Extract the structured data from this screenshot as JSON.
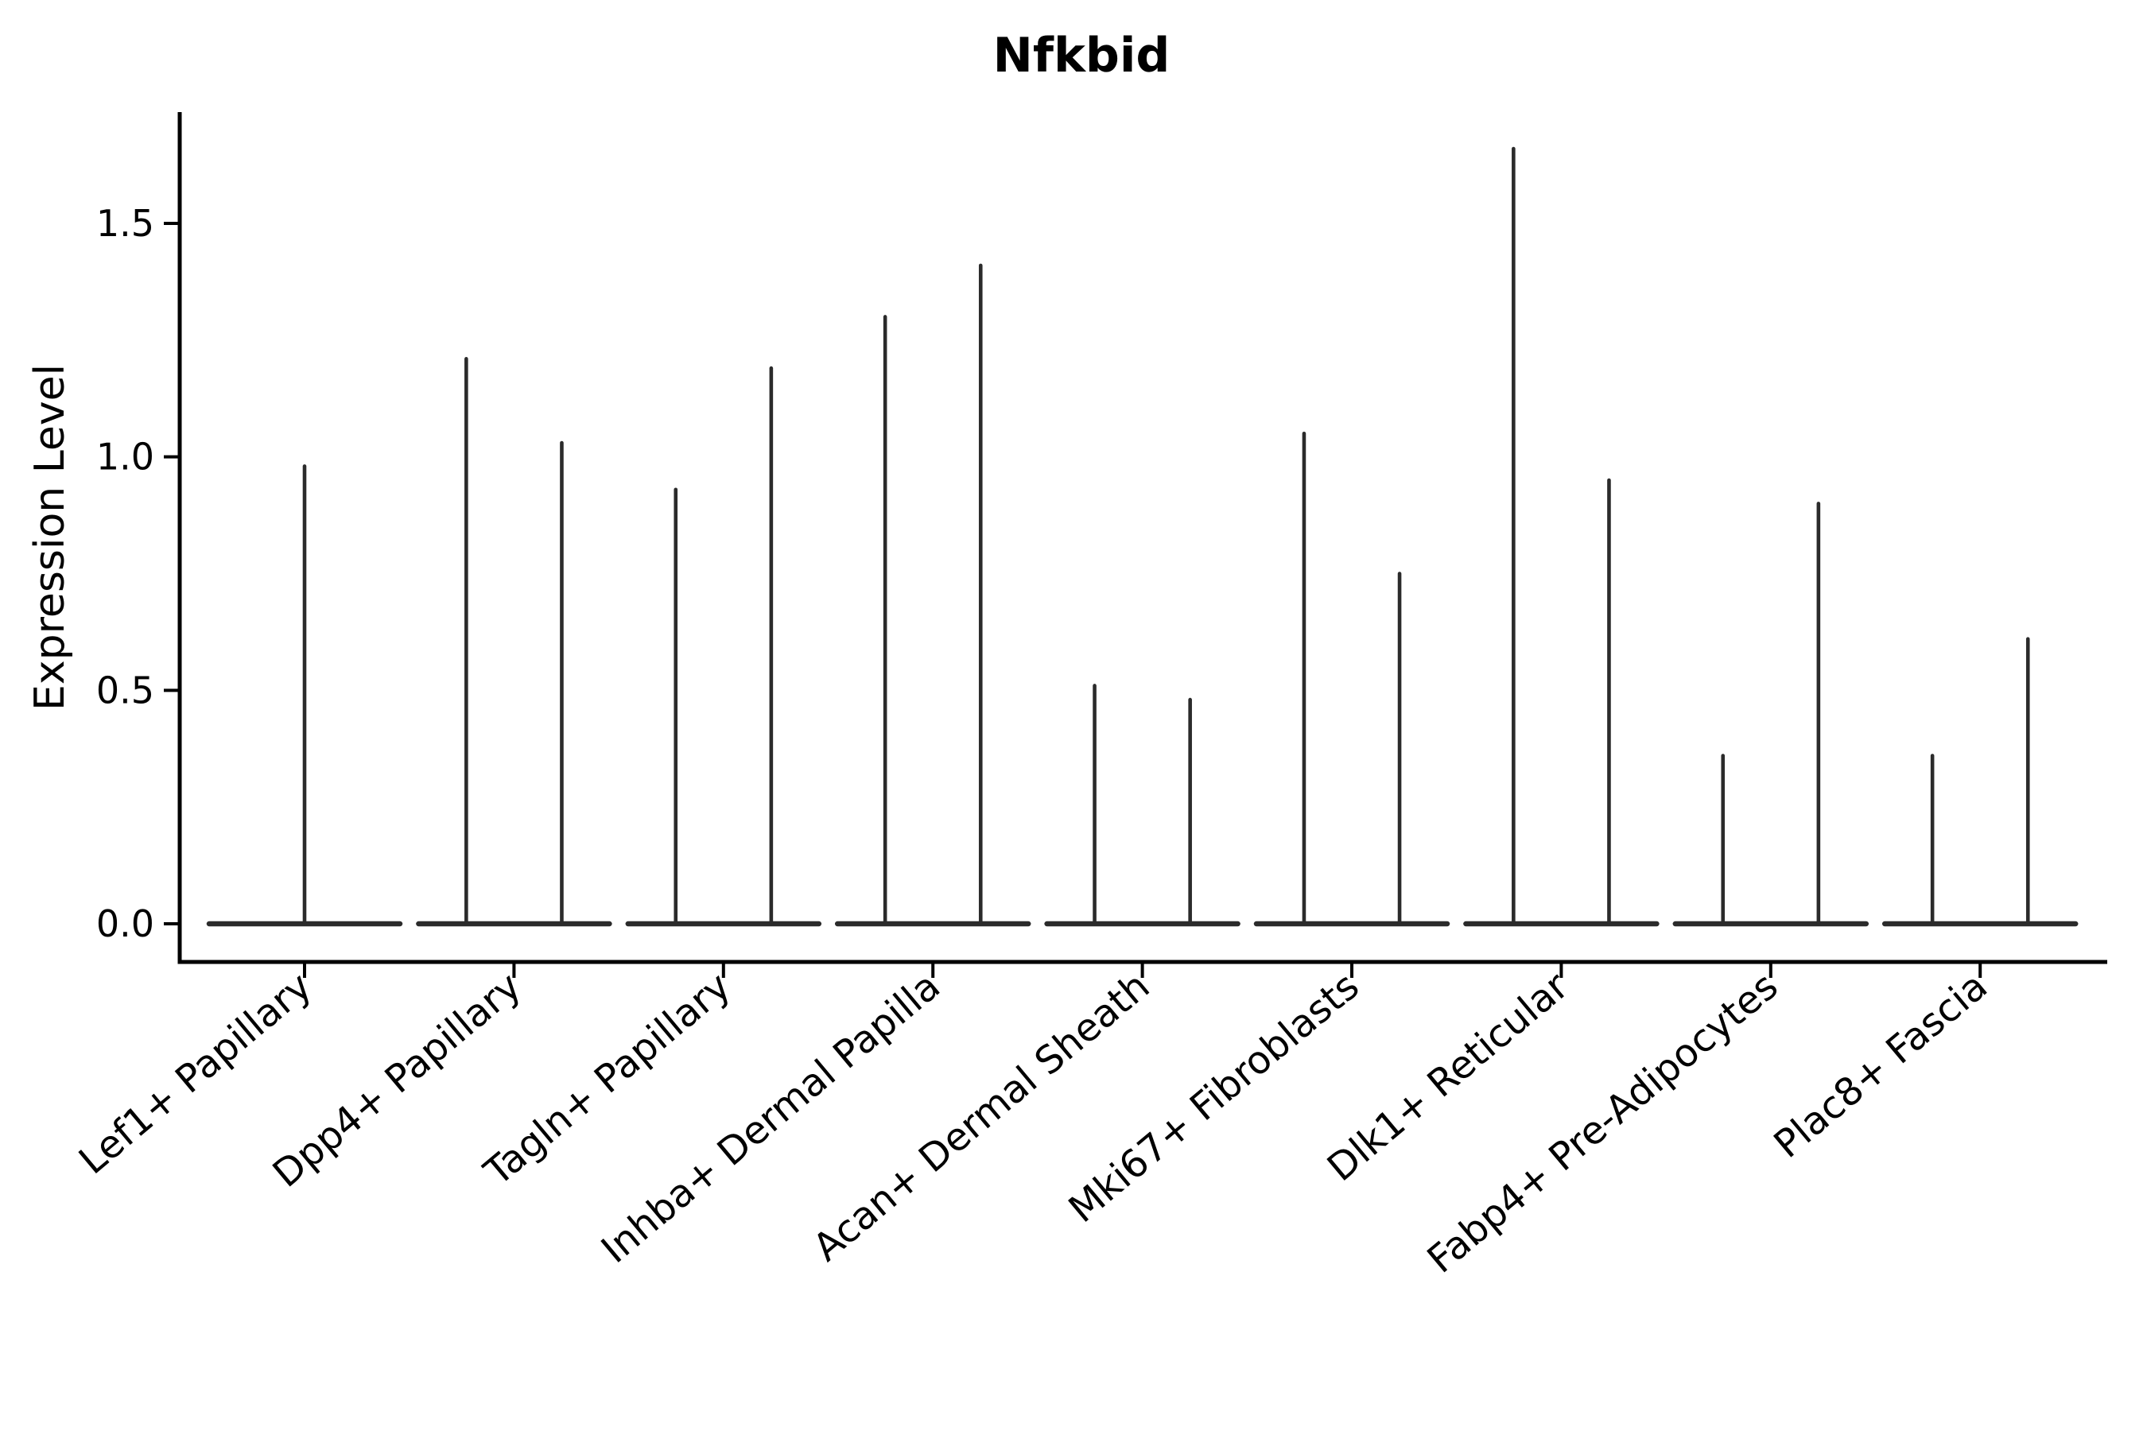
{
  "chart_data": {
    "type": "violin",
    "title": "Nfkbid",
    "ylabel": "Expression Level",
    "xlabel": "",
    "grid": false,
    "legend": "none",
    "ylim": [
      -0.08,
      1.74
    ],
    "ytick_values": [
      0.0,
      0.5,
      1.0,
      1.5
    ],
    "ytick_labels": [
      "0.0",
      "0.5",
      "1.0",
      "1.5"
    ],
    "categories": [
      "Lef1+ Papillary",
      "Dpp4+ Papillary",
      "Tagln+ Papillary",
      "Inhba+ Dermal Papilla",
      "Acan+ Dermal Sheath",
      "Mki67+ Fibroblasts",
      "Dlk1+ Reticular",
      "Fabp4+ Pre-Adipocytes",
      "Plac8+ Fascia"
    ],
    "violins": [
      {
        "category": "Lef1+ Papillary",
        "spikes": [
          {
            "offset": 0,
            "max": 0.98
          }
        ]
      },
      {
        "category": "Dpp4+ Papillary",
        "spikes": [
          {
            "offset": -0.228,
            "max": 1.21
          },
          {
            "offset": 0.228,
            "max": 1.03
          }
        ]
      },
      {
        "category": "Tagln+ Papillary",
        "spikes": [
          {
            "offset": -0.228,
            "max": 0.93
          },
          {
            "offset": 0.228,
            "max": 1.19
          }
        ]
      },
      {
        "category": "Inhba+ Dermal Papilla",
        "spikes": [
          {
            "offset": -0.228,
            "max": 1.3
          },
          {
            "offset": 0.228,
            "max": 1.41
          }
        ]
      },
      {
        "category": "Acan+ Dermal Sheath",
        "spikes": [
          {
            "offset": -0.228,
            "max": 0.51
          },
          {
            "offset": 0.228,
            "max": 0.48
          }
        ]
      },
      {
        "category": "Mki67+ Fibroblasts",
        "spikes": [
          {
            "offset": -0.228,
            "max": 1.05
          },
          {
            "offset": 0.228,
            "max": 0.75
          }
        ]
      },
      {
        "category": "Dlk1+ Reticular",
        "spikes": [
          {
            "offset": -0.228,
            "max": 1.66
          },
          {
            "offset": 0.228,
            "max": 0.95
          }
        ]
      },
      {
        "category": "Fabp4+ Pre-Adipocytes",
        "spikes": [
          {
            "offset": -0.228,
            "max": 0.36
          },
          {
            "offset": 0.228,
            "max": 0.9
          }
        ]
      },
      {
        "category": "Plac8+ Fascia",
        "spikes": [
          {
            "offset": -0.228,
            "max": 0.36
          },
          {
            "offset": 0.228,
            "max": 0.61
          }
        ]
      }
    ],
    "colors": {
      "violin": "#2b2b2b",
      "axis": "#000000",
      "text": "#000000",
      "background": "#ffffff"
    },
    "x_label_rotation_deg": 40
  }
}
